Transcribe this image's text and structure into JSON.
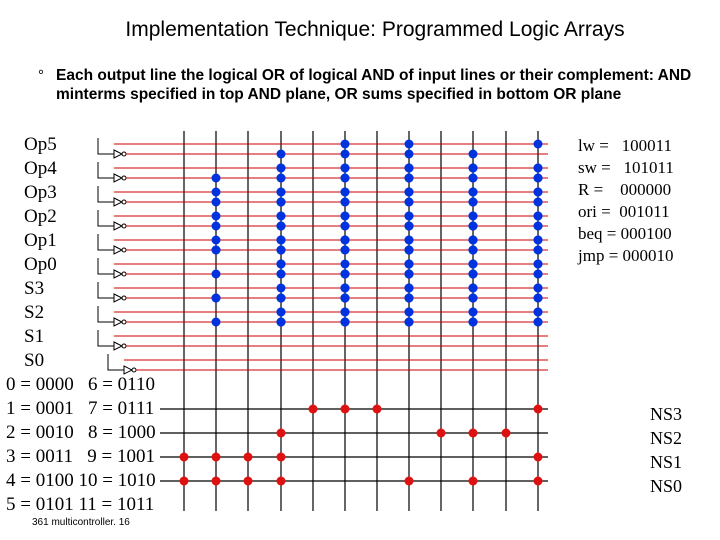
{
  "title": "Implementation Technique: Programmed Logic Arrays",
  "bullet_symbol": "°",
  "bullet_text": "Each output line the logical OR of logical AND of input lines or their complement: AND minterms specified in top AND plane, OR sums specified in bottom OR plane",
  "input_labels": [
    "Op5",
    "Op4",
    "Op3",
    "Op2",
    "Op1",
    "Op0",
    "S3",
    "S2",
    "S1",
    "S0"
  ],
  "state_codes": [
    "0 = 0000   6 = 0110",
    "1 = 0001   7 = 0111",
    "2 = 0010   8 = 1000",
    "3 = 0011   9 = 1001",
    "4 = 0100 10 = 1010",
    "5 = 0101 11 = 1011"
  ],
  "opcodes": [
    "lw =   100011",
    "sw =   101011",
    "R =    000000",
    "ori =  001011",
    "beq = 000100",
    "jmp = 000010"
  ],
  "output_labels": [
    "NS3",
    "NS2",
    "NS1",
    "NS0"
  ],
  "footer": "361 multicontroller. 16",
  "colors": {
    "and_plane": "#0033dd",
    "or_plane": "#dd1111",
    "lines": "#000000",
    "input_lines": "#cc0000"
  },
  "and_plane_dots": [
    [
      [
        0,
        7
      ],
      [
        1,
        7
      ],
      [
        2,
        1
      ],
      [
        3,
        1
      ],
      [
        4,
        1
      ],
      [
        4,
        3
      ],
      [
        4,
        5
      ],
      [
        5,
        7
      ]
    ],
    [
      [
        1,
        7
      ],
      [
        2,
        3
      ],
      [
        3,
        3
      ],
      [
        3,
        7
      ],
      [
        4,
        1
      ],
      [
        4,
        3
      ],
      [
        4,
        7
      ],
      [
        5,
        7
      ],
      [
        6,
        1
      ],
      [
        6,
        3
      ],
      [
        6,
        5
      ],
      [
        6,
        7
      ]
    ],
    [
      [
        0,
        5
      ],
      [
        1,
        3
      ],
      [
        1,
        5
      ],
      [
        1,
        7
      ],
      [
        1,
        9
      ],
      [
        2,
        3
      ],
      [
        2,
        5
      ],
      [
        2,
        7
      ],
      [
        2,
        9
      ],
      [
        3,
        3
      ],
      [
        3,
        9
      ],
      [
        4,
        5
      ],
      [
        4,
        7
      ],
      [
        4,
        9
      ],
      [
        5,
        3
      ],
      [
        5,
        7
      ],
      [
        5,
        9
      ],
      [
        6,
        5
      ],
      [
        6,
        7
      ],
      [
        6,
        9
      ]
    ],
    [
      [
        0,
        3
      ],
      [
        0,
        5
      ],
      [
        0,
        7
      ],
      [
        0,
        9
      ],
      [
        1,
        3
      ],
      [
        1,
        5
      ],
      [
        1,
        7
      ],
      [
        1,
        9
      ],
      [
        2,
        3
      ],
      [
        2,
        5
      ],
      [
        2,
        7
      ],
      [
        2,
        9
      ],
      [
        3,
        3
      ],
      [
        3,
        5
      ],
      [
        3,
        7
      ],
      [
        3,
        9
      ],
      [
        4,
        3
      ],
      [
        4,
        5
      ],
      [
        4,
        7
      ],
      [
        4,
        9
      ],
      [
        5,
        3
      ],
      [
        5,
        5
      ],
      [
        5,
        7
      ],
      [
        5,
        9
      ],
      [
        6,
        3
      ],
      [
        6,
        5
      ],
      [
        6,
        7
      ],
      [
        6,
        9
      ],
      [
        7,
        3
      ],
      [
        7,
        5
      ],
      [
        7,
        7
      ],
      [
        7,
        9
      ]
    ],
    [
      [
        0,
        11
      ],
      [
        1,
        9
      ],
      [
        1,
        11
      ],
      [
        2,
        7
      ],
      [
        2,
        9
      ],
      [
        2,
        11
      ],
      [
        3,
        5
      ],
      [
        3,
        7
      ],
      [
        3,
        11
      ],
      [
        4,
        3
      ],
      [
        4,
        5
      ],
      [
        4,
        9
      ],
      [
        4,
        11
      ],
      [
        5,
        3
      ],
      [
        5,
        7
      ],
      [
        5,
        9
      ],
      [
        5,
        11
      ],
      [
        6,
        5
      ],
      [
        6,
        7
      ],
      [
        6,
        9
      ],
      [
        6,
        11
      ],
      [
        7,
        3
      ],
      [
        7,
        5
      ],
      [
        7,
        7
      ],
      [
        7,
        9
      ],
      [
        7,
        11
      ]
    ],
    [
      [
        1,
        11
      ],
      [
        2,
        9
      ],
      [
        2,
        11
      ],
      [
        3,
        7
      ],
      [
        3,
        9
      ],
      [
        3,
        11
      ],
      [
        4,
        7
      ],
      [
        4,
        9
      ],
      [
        4,
        11
      ],
      [
        5,
        5
      ],
      [
        5,
        7
      ],
      [
        5,
        9
      ],
      [
        5,
        11
      ],
      [
        6,
        5
      ],
      [
        6,
        7
      ],
      [
        6,
        9
      ],
      [
        6,
        11
      ],
      [
        7,
        3
      ],
      [
        7,
        5
      ],
      [
        7,
        7
      ],
      [
        7,
        9
      ],
      [
        7,
        11
      ]
    ],
    [
      [
        1,
        3
      ],
      [
        1,
        5
      ],
      [
        1,
        7
      ],
      [
        1,
        9
      ],
      [
        1,
        11
      ],
      [
        2,
        3
      ],
      [
        2,
        5
      ],
      [
        2,
        7
      ],
      [
        2,
        9
      ],
      [
        2,
        11
      ],
      [
        3,
        3
      ],
      [
        3,
        5
      ],
      [
        3,
        7
      ],
      [
        3,
        9
      ],
      [
        3,
        11
      ],
      [
        4,
        3
      ],
      [
        4,
        5
      ],
      [
        4,
        7
      ],
      [
        4,
        9
      ],
      [
        4,
        11
      ],
      [
        5,
        3
      ],
      [
        5,
        5
      ],
      [
        5,
        7
      ],
      [
        5,
        9
      ],
      [
        5,
        11
      ],
      [
        6,
        3
      ],
      [
        6,
        5
      ],
      [
        6,
        7
      ],
      [
        6,
        9
      ],
      [
        6,
        11
      ],
      [
        7,
        3
      ],
      [
        7,
        5
      ],
      [
        7,
        7
      ],
      [
        7,
        9
      ],
      [
        7,
        11
      ]
    ],
    [
      [
        1,
        1
      ],
      [
        1,
        3
      ],
      [
        1,
        5
      ],
      [
        1,
        7
      ],
      [
        1,
        9
      ],
      [
        1,
        11
      ],
      [
        2,
        1
      ],
      [
        2,
        3
      ],
      [
        2,
        5
      ],
      [
        2,
        7
      ],
      [
        2,
        9
      ],
      [
        2,
        11
      ],
      [
        3,
        1
      ],
      [
        3,
        3
      ],
      [
        3,
        5
      ],
      [
        3,
        7
      ],
      [
        3,
        9
      ],
      [
        3,
        11
      ],
      [
        4,
        1
      ],
      [
        4,
        3
      ],
      [
        4,
        5
      ],
      [
        4,
        7
      ],
      [
        4,
        9
      ],
      [
        4,
        11
      ],
      [
        5,
        1
      ],
      [
        5,
        3
      ],
      [
        5,
        5
      ],
      [
        5,
        7
      ],
      [
        5,
        9
      ],
      [
        5,
        11
      ],
      [
        6,
        1
      ],
      [
        6,
        3
      ],
      [
        6,
        5
      ],
      [
        6,
        7
      ],
      [
        6,
        9
      ],
      [
        6,
        11
      ],
      [
        7,
        1
      ],
      [
        7,
        3
      ],
      [
        7,
        5
      ],
      [
        7,
        7
      ],
      [
        7,
        9
      ],
      [
        7,
        11
      ]
    ]
  ],
  "or_plane_dots": [
    [
      [
        0,
        1
      ]
    ],
    [
      [
        0,
        3
      ]
    ],
    [
      [
        0,
        5
      ]
    ],
    [
      [
        0,
        7
      ]
    ]
  ]
}
